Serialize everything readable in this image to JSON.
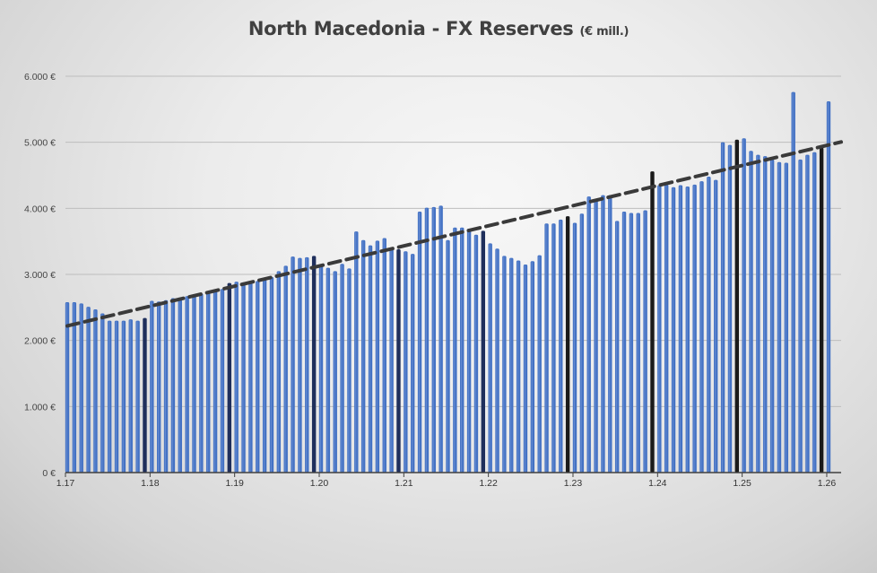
{
  "title": {
    "main": "North Macedonia - FX Reserves",
    "unit": "(€ mill.)"
  },
  "colors": {
    "bar": "#4472c4",
    "bar_light": "#6f93d6",
    "bar_december_dark": "#1f2f5c",
    "bar_december_black": "#1a1a1a",
    "trend": "#3a3a3a",
    "grid": "#bdbdbd",
    "axis": "#404040"
  },
  "chart_data": {
    "type": "bar",
    "title": "North Macedonia - FX Reserves (€ mill.)",
    "xlabel": "",
    "ylabel": "",
    "ylim": [
      0,
      6000
    ],
    "y_ticks": [
      "0 €",
      "1.000 €",
      "2.000 €",
      "3.000 €",
      "4.000 €",
      "5.000 €",
      "6.000 €"
    ],
    "x_tick_labels": [
      "1.17",
      "1.18",
      "1.19",
      "1.20",
      "1.21",
      "1.22",
      "1.23",
      "1.24",
      "1.25",
      "1.26"
    ],
    "grid": true,
    "legend": "none",
    "bar_frequency": "monthly, Jan 2017 – Jan 2026; December bars highlighted dark",
    "series": [
      {
        "name": "FX Reserves",
        "values": [
          2580,
          2580,
          2560,
          2510,
          2470,
          2410,
          2300,
          2300,
          2300,
          2320,
          2300,
          2340,
          2600,
          2590,
          2610,
          2640,
          2650,
          2670,
          2690,
          2710,
          2730,
          2750,
          2780,
          2870,
          2890,
          2880,
          2890,
          2900,
          2920,
          2960,
          3050,
          3130,
          3270,
          3250,
          3260,
          3280,
          3130,
          3100,
          3050,
          3160,
          3090,
          3650,
          3520,
          3440,
          3510,
          3550,
          3400,
          3380,
          3350,
          3310,
          3950,
          4010,
          4020,
          4040,
          3520,
          3710,
          3710,
          3690,
          3600,
          3660,
          3470,
          3390,
          3280,
          3250,
          3210,
          3150,
          3200,
          3290,
          3770,
          3770,
          3830,
          3880,
          3780,
          3920,
          4180,
          4140,
          4200,
          4200,
          3810,
          3950,
          3930,
          3930,
          3970,
          4560,
          4350,
          4360,
          4320,
          4350,
          4330,
          4360,
          4410,
          4480,
          4430,
          5000,
          4960,
          5040,
          5060,
          4870,
          4810,
          4790,
          4740,
          4700,
          4690,
          5760,
          4740,
          4810,
          4850,
          4920,
          5620
        ]
      },
      {
        "name": "Trend (linear)",
        "type": "line",
        "start": [
          0,
          2220
        ],
        "end": [
          108,
          4960
        ]
      }
    ]
  }
}
